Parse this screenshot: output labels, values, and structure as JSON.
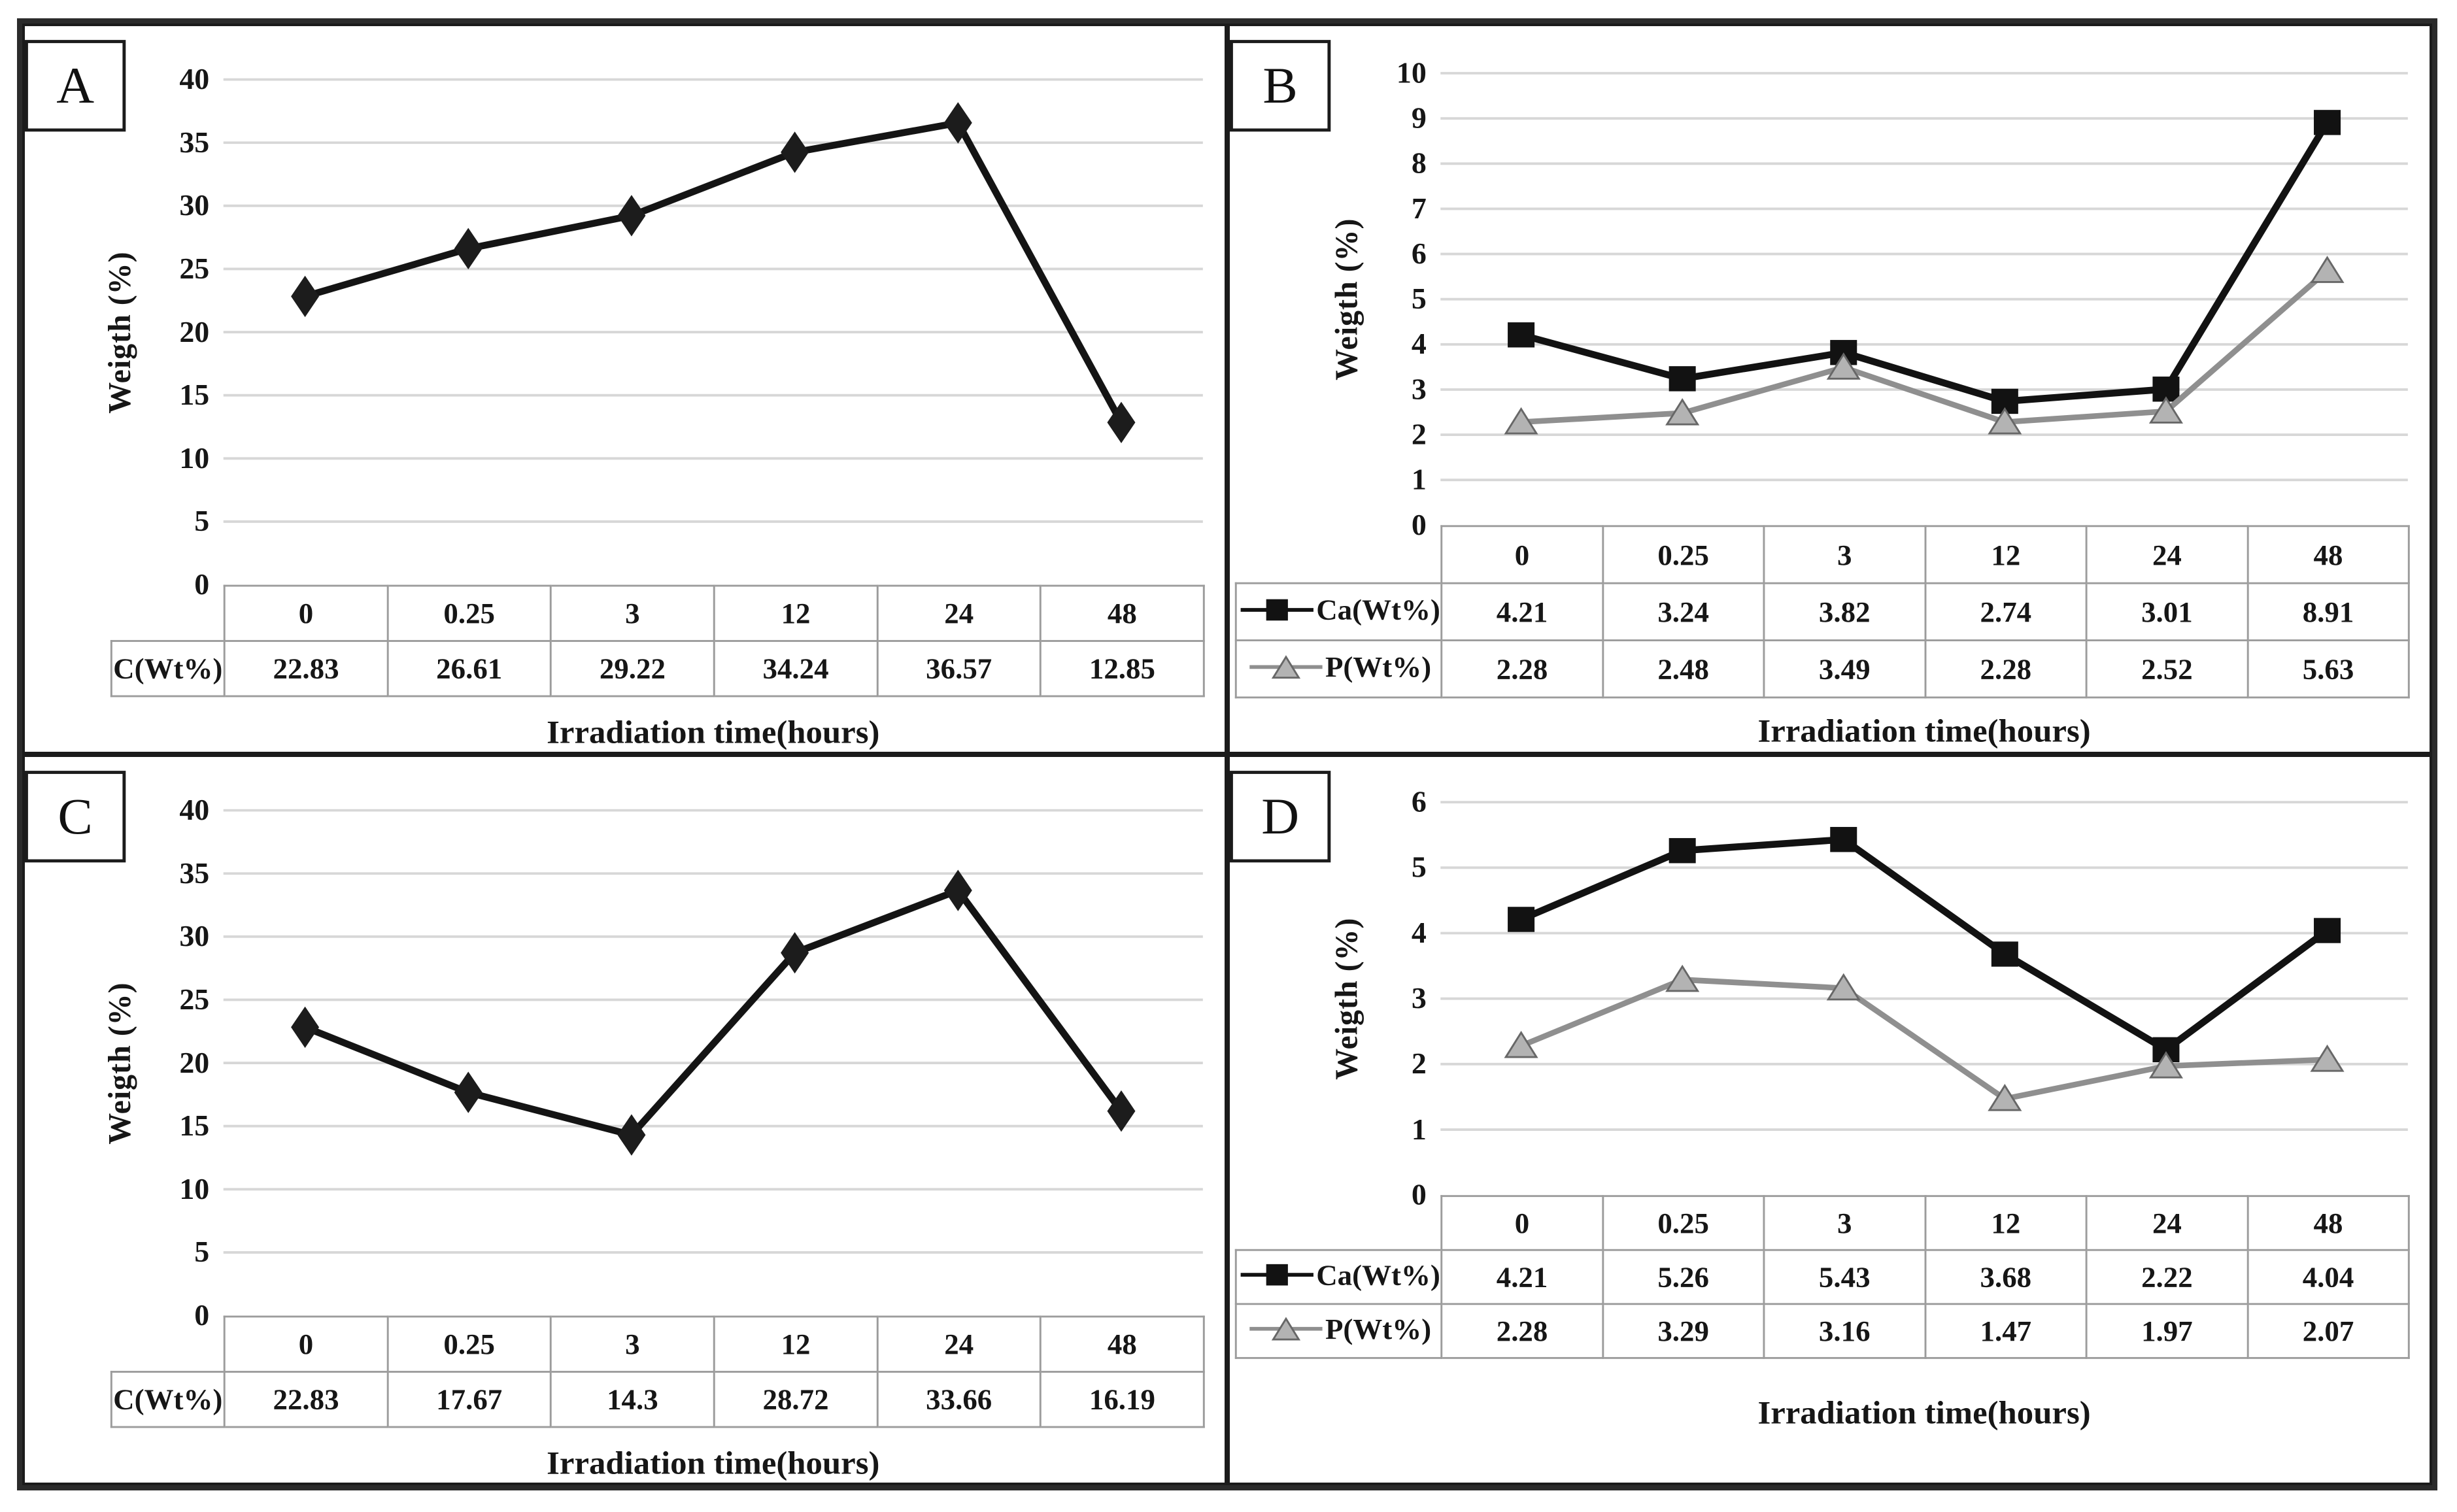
{
  "figure": {
    "background": "#ffffff",
    "border_color": "#2b2b2b",
    "gridline_color": "#d7d7d7",
    "table_border_color": "#9c9c9c",
    "text_color": "#161616"
  },
  "chart_data": [
    {
      "panel": "A",
      "type": "line",
      "title": "",
      "xlabel": "Irradiation time(hours)",
      "ylabel": "Weigth (%)",
      "ylim": [
        0,
        40
      ],
      "ytick_step": 5,
      "yticks": [
        0,
        5,
        10,
        15,
        20,
        25,
        30,
        35,
        40
      ],
      "grid": true,
      "legend_position": "table-left",
      "categories": [
        "0",
        "0.25",
        "3",
        "12",
        "24",
        "48"
      ],
      "series": [
        {
          "name": "C(Wt%)",
          "marker": "diamond",
          "color": "#141414",
          "marker_fill": "#1c1c1c",
          "legend_in_table": false,
          "values": [
            22.83,
            26.61,
            29.22,
            34.24,
            36.57,
            12.85
          ]
        }
      ]
    },
    {
      "panel": "B",
      "type": "line",
      "title": "",
      "xlabel": "Irradiation time(hours)",
      "ylabel": "Weigth (%)",
      "ylim": [
        0,
        10
      ],
      "ytick_step": 1,
      "yticks": [
        0,
        1,
        2,
        3,
        4,
        5,
        6,
        7,
        8,
        9,
        10
      ],
      "grid": true,
      "legend_position": "table-left",
      "categories": [
        "0",
        "0.25",
        "3",
        "12",
        "24",
        "48"
      ],
      "series": [
        {
          "name": "Ca(Wt%)",
          "marker": "square",
          "color": "#121212",
          "marker_fill": "#121212",
          "legend_in_table": true,
          "values": [
            4.21,
            3.24,
            3.82,
            2.74,
            3.01,
            8.91
          ]
        },
        {
          "name": "P(Wt%)",
          "marker": "triangle",
          "color": "#8f8f8f",
          "marker_fill": "#b3b3b3",
          "marker_stroke": "#676767",
          "legend_in_table": true,
          "values": [
            2.28,
            2.48,
            3.49,
            2.28,
            2.52,
            5.63
          ]
        }
      ]
    },
    {
      "panel": "C",
      "type": "line",
      "title": "",
      "xlabel": "Irradiation time(hours)",
      "ylabel": "Weigth (%)",
      "ylim": [
        0,
        40
      ],
      "ytick_step": 5,
      "yticks": [
        0,
        5,
        10,
        15,
        20,
        25,
        30,
        35,
        40
      ],
      "grid": true,
      "legend_position": "table-left",
      "categories": [
        "0",
        "0.25",
        "3",
        "12",
        "24",
        "48"
      ],
      "series": [
        {
          "name": "C(Wt%)",
          "marker": "diamond",
          "color": "#141414",
          "marker_fill": "#1c1c1c",
          "legend_in_table": false,
          "values": [
            22.83,
            17.67,
            14.3,
            28.72,
            33.66,
            16.19
          ]
        }
      ]
    },
    {
      "panel": "D",
      "type": "line",
      "title": "",
      "xlabel": "Irradiation time(hours)",
      "ylabel": "Weigth (%)",
      "ylim": [
        0,
        6
      ],
      "ytick_step": 1,
      "yticks": [
        0,
        1,
        2,
        3,
        4,
        5,
        6
      ],
      "grid": true,
      "legend_position": "table-left",
      "categories": [
        "0",
        "0.25",
        "3",
        "12",
        "24",
        "48"
      ],
      "series": [
        {
          "name": "Ca(Wt%)",
          "marker": "square",
          "color": "#121212",
          "marker_fill": "#121212",
          "legend_in_table": true,
          "values": [
            4.21,
            5.26,
            5.43,
            3.68,
            2.22,
            4.04
          ]
        },
        {
          "name": "P(Wt%)",
          "marker": "triangle",
          "color": "#8f8f8f",
          "marker_fill": "#b3b3b3",
          "marker_stroke": "#676767",
          "legend_in_table": true,
          "values": [
            2.28,
            3.29,
            3.16,
            1.47,
            1.97,
            2.07
          ]
        }
      ]
    }
  ]
}
